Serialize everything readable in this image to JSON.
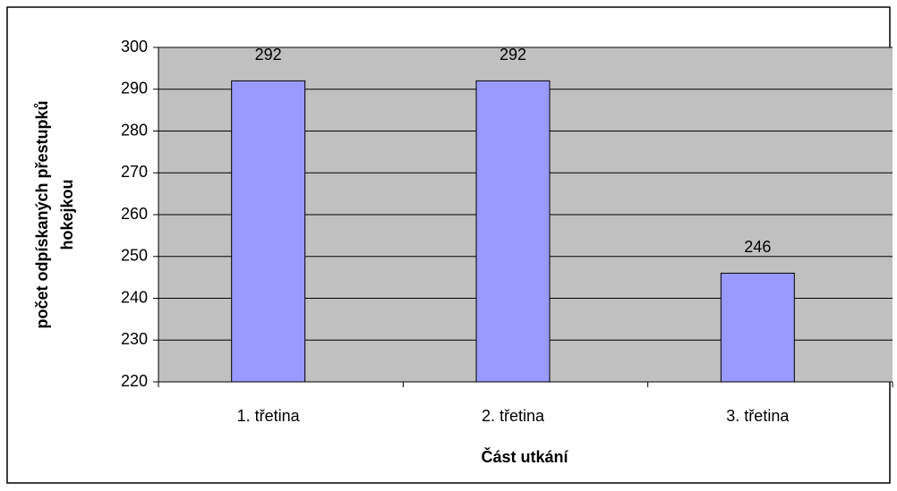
{
  "chart_data": {
    "type": "bar",
    "categories": [
      "1. třetina",
      "2. třetina",
      "3. třetina"
    ],
    "values": [
      292,
      292,
      246
    ],
    "color": "#9999ff",
    "ylim": [
      220,
      300
    ],
    "yticks": [
      220,
      230,
      240,
      250,
      260,
      270,
      280,
      290,
      300
    ],
    "grid": true,
    "xlabel": "Část utkání",
    "ylabel": [
      "počet odpískaných přestupků",
      "hokejkou"
    ]
  }
}
